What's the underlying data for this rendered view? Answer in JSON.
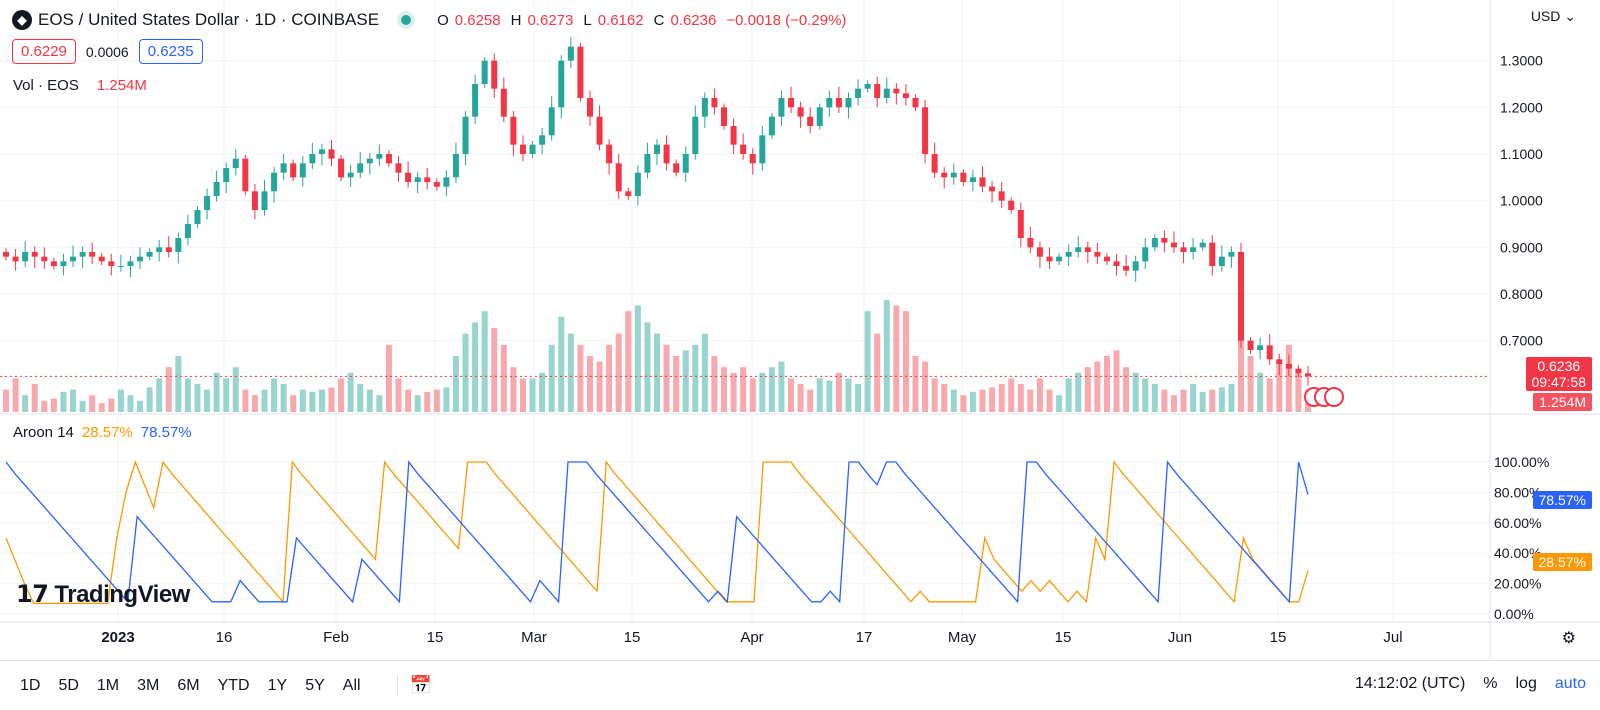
{
  "header": {
    "symbol_icon": "eos-logo-icon",
    "title": "EOS / United States Dollar · 1D · COINBASE",
    "ohlc": [
      {
        "k": "O",
        "v": "0.6258"
      },
      {
        "k": "H",
        "v": "0.6273"
      },
      {
        "k": "L",
        "v": "0.6162"
      },
      {
        "k": "C",
        "v": "0.6236"
      },
      {
        "k": "",
        "v": "−0.0018 (−0.29%)"
      }
    ],
    "bid": "0.6229",
    "spread": "0.0006",
    "ask": "0.6235",
    "currency": "USD"
  },
  "volume_legend": {
    "label": "Vol · EOS",
    "value": "1.254M"
  },
  "aroon_legend": {
    "label": "Aroon 14",
    "up": "28.57%",
    "down": "78.57%"
  },
  "price_axis_ticks": [
    "1.3000",
    "1.2000",
    "1.1000",
    "1.0000",
    "0.9000",
    "0.8000",
    "0.7000"
  ],
  "aroon_axis_ticks": [
    "100.00%",
    "80.00%",
    "60.00%",
    "40.00%",
    "20.00%",
    "0.00%"
  ],
  "tags": {
    "price": "0.6236",
    "countdown": "09:47:58",
    "volume": "1.254M",
    "aroon_down": "78.57%",
    "aroon_up": "28.57%"
  },
  "time_axis": [
    "2023",
    "16",
    "Feb",
    "15",
    "Mar",
    "15",
    "Apr",
    "17",
    "May",
    "15",
    "Jun",
    "15",
    "Jul"
  ],
  "timeframes": [
    "1D",
    "5D",
    "1M",
    "3M",
    "6M",
    "YTD",
    "1Y",
    "5Y",
    "All"
  ],
  "bottom_right": {
    "clock": "14:12:02 (UTC)",
    "percent": "%",
    "log": "log",
    "auto": "auto"
  },
  "watermark": "TradingView",
  "colors": {
    "up": "#26a69a",
    "down": "#f23645",
    "aroon_up": "#ff9800",
    "aroon_down": "#2962ff"
  },
  "chart_data": {
    "type": "candlestick",
    "x_range": [
      "2022-12-18",
      "2023-06-21"
    ],
    "price_range": [
      0.62,
      1.34
    ],
    "close_series": [
      0.88,
      0.87,
      0.89,
      0.88,
      0.87,
      0.86,
      0.87,
      0.88,
      0.89,
      0.88,
      0.87,
      0.86,
      0.86,
      0.87,
      0.88,
      0.89,
      0.9,
      0.89,
      0.92,
      0.95,
      0.98,
      1.01,
      1.04,
      1.07,
      1.09,
      1.02,
      0.98,
      1.02,
      1.06,
      1.08,
      1.05,
      1.08,
      1.1,
      1.11,
      1.09,
      1.05,
      1.06,
      1.08,
      1.09,
      1.1,
      1.08,
      1.06,
      1.04,
      1.05,
      1.04,
      1.03,
      1.05,
      1.1,
      1.18,
      1.25,
      1.3,
      1.24,
      1.18,
      1.12,
      1.1,
      1.12,
      1.14,
      1.2,
      1.3,
      1.33,
      1.22,
      1.18,
      1.12,
      1.08,
      1.02,
      1.01,
      1.06,
      1.1,
      1.12,
      1.08,
      1.06,
      1.1,
      1.18,
      1.22,
      1.2,
      1.16,
      1.12,
      1.1,
      1.08,
      1.14,
      1.18,
      1.22,
      1.2,
      1.18,
      1.16,
      1.2,
      1.22,
      1.2,
      1.22,
      1.24,
      1.25,
      1.22,
      1.24,
      1.23,
      1.22,
      1.2,
      1.1,
      1.06,
      1.05,
      1.06,
      1.04,
      1.05,
      1.03,
      1.02,
      1.0,
      0.98,
      0.92,
      0.9,
      0.88,
      0.87,
      0.88,
      0.89,
      0.9,
      0.89,
      0.88,
      0.87,
      0.86,
      0.85,
      0.87,
      0.9,
      0.92,
      0.91,
      0.9,
      0.89,
      0.9,
      0.91,
      0.86,
      0.88,
      0.89,
      0.7,
      0.68,
      0.69,
      0.66,
      0.65,
      0.64,
      0.63,
      0.6236
    ],
    "volume_series": [
      0.2,
      0.3,
      0.15,
      0.25,
      0.1,
      0.12,
      0.18,
      0.2,
      0.1,
      0.15,
      0.08,
      0.12,
      0.2,
      0.15,
      0.1,
      0.22,
      0.3,
      0.4,
      0.5,
      0.3,
      0.25,
      0.2,
      0.35,
      0.3,
      0.4,
      0.2,
      0.15,
      0.2,
      0.3,
      0.25,
      0.15,
      0.2,
      0.18,
      0.2,
      0.22,
      0.3,
      0.35,
      0.25,
      0.2,
      0.15,
      0.6,
      0.3,
      0.2,
      0.15,
      0.18,
      0.2,
      0.22,
      0.5,
      0.7,
      0.8,
      0.9,
      0.75,
      0.6,
      0.4,
      0.3,
      0.3,
      0.35,
      0.6,
      0.85,
      0.7,
      0.6,
      0.5,
      0.45,
      0.6,
      0.7,
      0.9,
      0.95,
      0.8,
      0.7,
      0.6,
      0.5,
      0.55,
      0.6,
      0.7,
      0.5,
      0.4,
      0.35,
      0.4,
      0.3,
      0.35,
      0.4,
      0.45,
      0.3,
      0.25,
      0.2,
      0.3,
      0.28,
      0.35,
      0.3,
      0.25,
      0.9,
      0.7,
      1.0,
      0.95,
      0.9,
      0.5,
      0.45,
      0.3,
      0.25,
      0.2,
      0.15,
      0.18,
      0.2,
      0.22,
      0.25,
      0.3,
      0.25,
      0.2,
      0.3,
      0.2,
      0.15,
      0.3,
      0.35,
      0.4,
      0.45,
      0.5,
      0.55,
      0.4,
      0.35,
      0.3,
      0.25,
      0.2,
      0.15,
      0.2,
      0.25,
      0.18,
      0.2,
      0.22,
      0.25,
      1.0,
      0.5,
      0.35,
      0.3,
      0.45,
      0.6,
      0.35,
      0.2
    ],
    "aroon_up": [
      50,
      35,
      20,
      7,
      7,
      7,
      7,
      7,
      7,
      7,
      7,
      7,
      50,
      80,
      100,
      85,
      70,
      100,
      92,
      85,
      78,
      71,
      64,
      57,
      50,
      43,
      36,
      29,
      22,
      15,
      8,
      100,
      92,
      85,
      78,
      71,
      64,
      57,
      50,
      43,
      36,
      100,
      92,
      85,
      78,
      71,
      64,
      57,
      50,
      43,
      100,
      100,
      100,
      92,
      85,
      78,
      71,
      64,
      57,
      50,
      43,
      36,
      29,
      22,
      15,
      100,
      92,
      85,
      78,
      71,
      64,
      57,
      50,
      43,
      36,
      29,
      22,
      15,
      8,
      8,
      8,
      8,
      100,
      100,
      100,
      100,
      92,
      85,
      78,
      71,
      64,
      57,
      50,
      43,
      36,
      29,
      22,
      15,
      8,
      15,
      8,
      8,
      8,
      8,
      8,
      8,
      50,
      36,
      29,
      22,
      15,
      22,
      15,
      22,
      15,
      8,
      15,
      8,
      50,
      36,
      100,
      92,
      85,
      78,
      71,
      64,
      57,
      50,
      43,
      36,
      29,
      22,
      15,
      8,
      50,
      36,
      29,
      22,
      15,
      8,
      8,
      28.57
    ],
    "aroon_down": [
      100,
      92,
      85,
      78,
      71,
      64,
      57,
      50,
      43,
      36,
      29,
      22,
      15,
      8,
      64,
      57,
      50,
      43,
      36,
      29,
      22,
      15,
      8,
      8,
      8,
      22,
      15,
      8,
      8,
      8,
      8,
      50,
      43,
      36,
      29,
      22,
      15,
      8,
      36,
      29,
      22,
      15,
      8,
      100,
      92,
      85,
      78,
      71,
      64,
      57,
      50,
      43,
      36,
      29,
      22,
      15,
      8,
      22,
      15,
      8,
      100,
      100,
      100,
      92,
      85,
      78,
      71,
      64,
      57,
      50,
      43,
      36,
      29,
      22,
      15,
      8,
      15,
      8,
      64,
      57,
      50,
      43,
      36,
      29,
      22,
      15,
      8,
      8,
      15,
      8,
      100,
      100,
      92,
      85,
      100,
      100,
      92,
      85,
      78,
      71,
      64,
      57,
      50,
      43,
      36,
      29,
      22,
      15,
      8,
      100,
      100,
      92,
      85,
      78,
      71,
      64,
      57,
      50,
      43,
      36,
      29,
      22,
      15,
      8,
      100,
      92,
      85,
      78,
      71,
      64,
      57,
      50,
      43,
      36,
      29,
      22,
      15,
      8,
      100,
      78.57
    ]
  }
}
